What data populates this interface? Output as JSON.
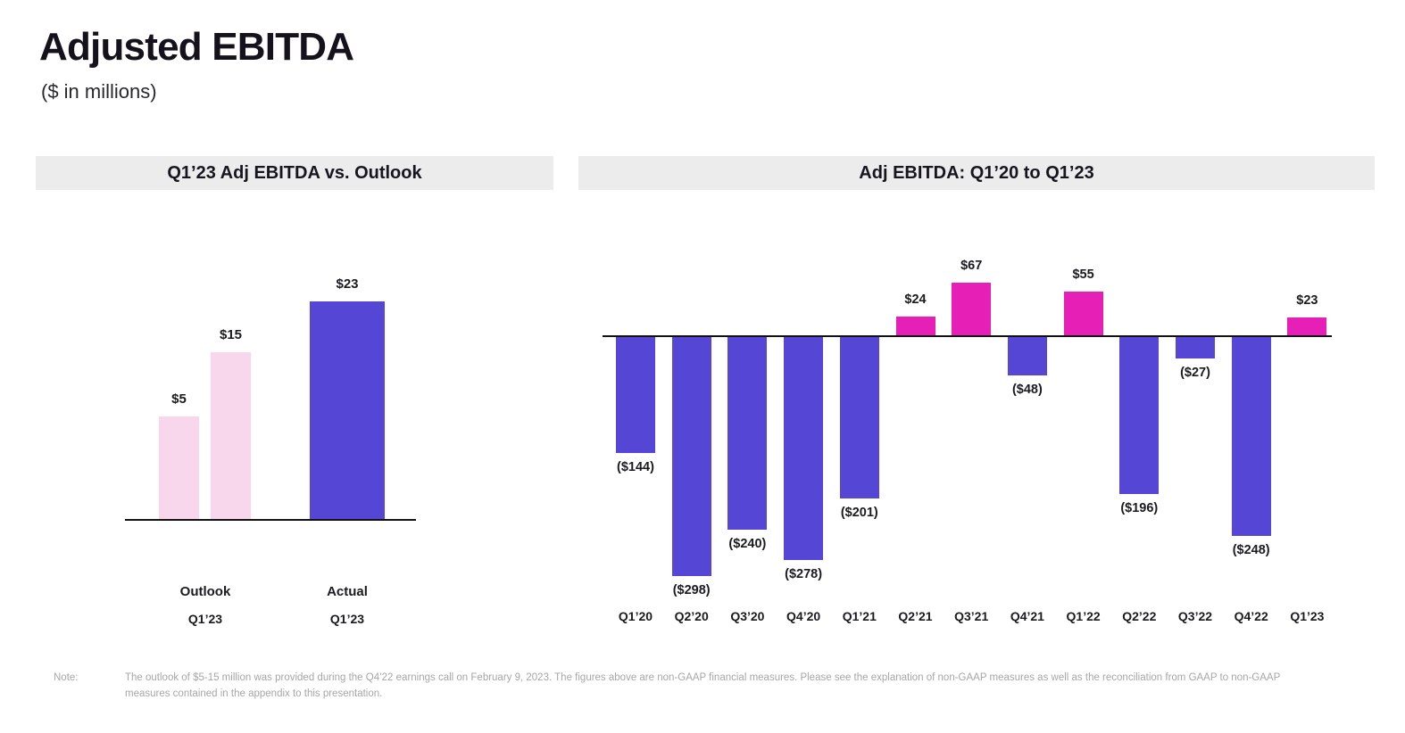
{
  "page": {
    "title": "Adjusted EBITDA",
    "subtitle": "($ in millions)",
    "note_label": "Note:",
    "note_text": "The outlook of $5-15 million was provided during the Q4’22 earnings call on February 9, 2023. The figures above are non-GAAP financial measures. Please see the explanation of non-GAAP measures as well as the reconciliation from GAAP to non-GAAP measures contained in the appendix to this presentation."
  },
  "colors": {
    "purple": "#5546d6",
    "magenta": "#e620b6",
    "light_pink": "#f8d7ec",
    "header_bg": "#ececec",
    "axis": "#111111",
    "text_dark": "#1b1a21",
    "note_gray": "#a6a6a6"
  },
  "chart_data": [
    {
      "type": "bar",
      "title": "Q1’23 Adj EBITDA vs. Outlook",
      "units": "$ in millions",
      "bars": [
        {
          "label": "$5",
          "value": 5,
          "group": "Outlook",
          "color": "light_pink"
        },
        {
          "label": "$15",
          "value": 15,
          "group": "Outlook",
          "color": "light_pink"
        },
        {
          "label": "$23",
          "value": 23,
          "group": "Actual",
          "color": "purple"
        }
      ],
      "x_axis_groups": [
        {
          "line1": "Outlook",
          "line2": "Q1’23"
        },
        {
          "line1": "Actual",
          "line2": "Q1’23"
        }
      ],
      "ylim": [
        0,
        25
      ],
      "grid": false,
      "legend": false
    },
    {
      "type": "bar",
      "title": "Adj EBITDA: Q1’20 to Q1’23",
      "units": "$ in millions",
      "categories": [
        "Q1’20",
        "Q2’20",
        "Q3’20",
        "Q4’20",
        "Q1’21",
        "Q2’21",
        "Q3’21",
        "Q4’21",
        "Q1’22",
        "Q2’22",
        "Q3’22",
        "Q4’22",
        "Q1’23"
      ],
      "values": [
        -144,
        -298,
        -240,
        -278,
        -201,
        24,
        67,
        -48,
        55,
        -196,
        -27,
        -248,
        23
      ],
      "labels": [
        "($144)",
        "($298)",
        "($240)",
        "($278)",
        "($201)",
        "$24",
        "$67",
        "($48)",
        "$55",
        "($196)",
        "($27)",
        "($248)",
        "$23"
      ],
      "positive_color": "magenta",
      "negative_color": "purple",
      "ylim": [
        -320,
        80
      ],
      "grid": false,
      "legend": false
    }
  ]
}
